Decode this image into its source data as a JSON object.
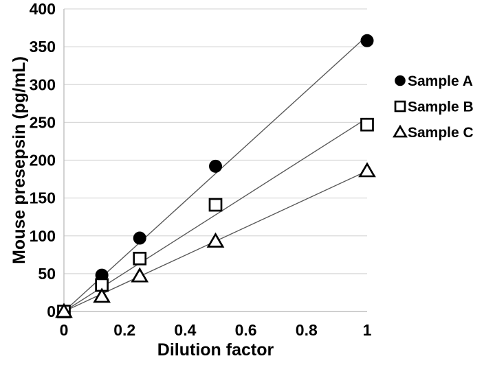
{
  "figure": {
    "background": "#ffffff"
  },
  "chart_data": {
    "type": "scatter",
    "title": "",
    "xlabel": "Dilution factor",
    "ylabel": "Mouse presepsin (pg/mL)",
    "x": [
      0,
      0.125,
      0.25,
      0.5,
      1
    ],
    "series": [
      {
        "name": "Sample A",
        "marker": "filled-circle",
        "values": [
          0,
          48,
          97,
          192,
          358
        ],
        "trend_slope": 364.6
      },
      {
        "name": "Sample B",
        "marker": "open-square",
        "values": [
          0,
          35,
          70,
          141,
          247
        ],
        "trend_slope": 255.5
      },
      {
        "name": "Sample C",
        "marker": "open-triangle",
        "values": [
          0,
          20,
          47,
          93,
          186
        ],
        "trend_slope": 185.8
      }
    ],
    "xlim": [
      0,
      1
    ],
    "ylim": [
      0,
      400
    ],
    "xticks": [
      0,
      0.2,
      0.4,
      0.6,
      0.8,
      1
    ],
    "xtick_labels": [
      "0",
      "0.2",
      "0.4",
      "0.6",
      "0.8",
      "1"
    ],
    "yticks": [
      0,
      50,
      100,
      150,
      200,
      250,
      300,
      350,
      400
    ],
    "ytick_labels": [
      "0",
      "50",
      "100",
      "150",
      "200",
      "250",
      "300",
      "350",
      "400"
    ],
    "grid": true,
    "trendlines": true,
    "legend_position": "right",
    "colors": {
      "marker": "#000000",
      "marker_fill_open": "#ffffff",
      "trendline": "#595959",
      "gridline": "#d9d9d9",
      "axis_line": "#bfbfbf",
      "text": "#000000",
      "background": "#ffffff"
    }
  }
}
